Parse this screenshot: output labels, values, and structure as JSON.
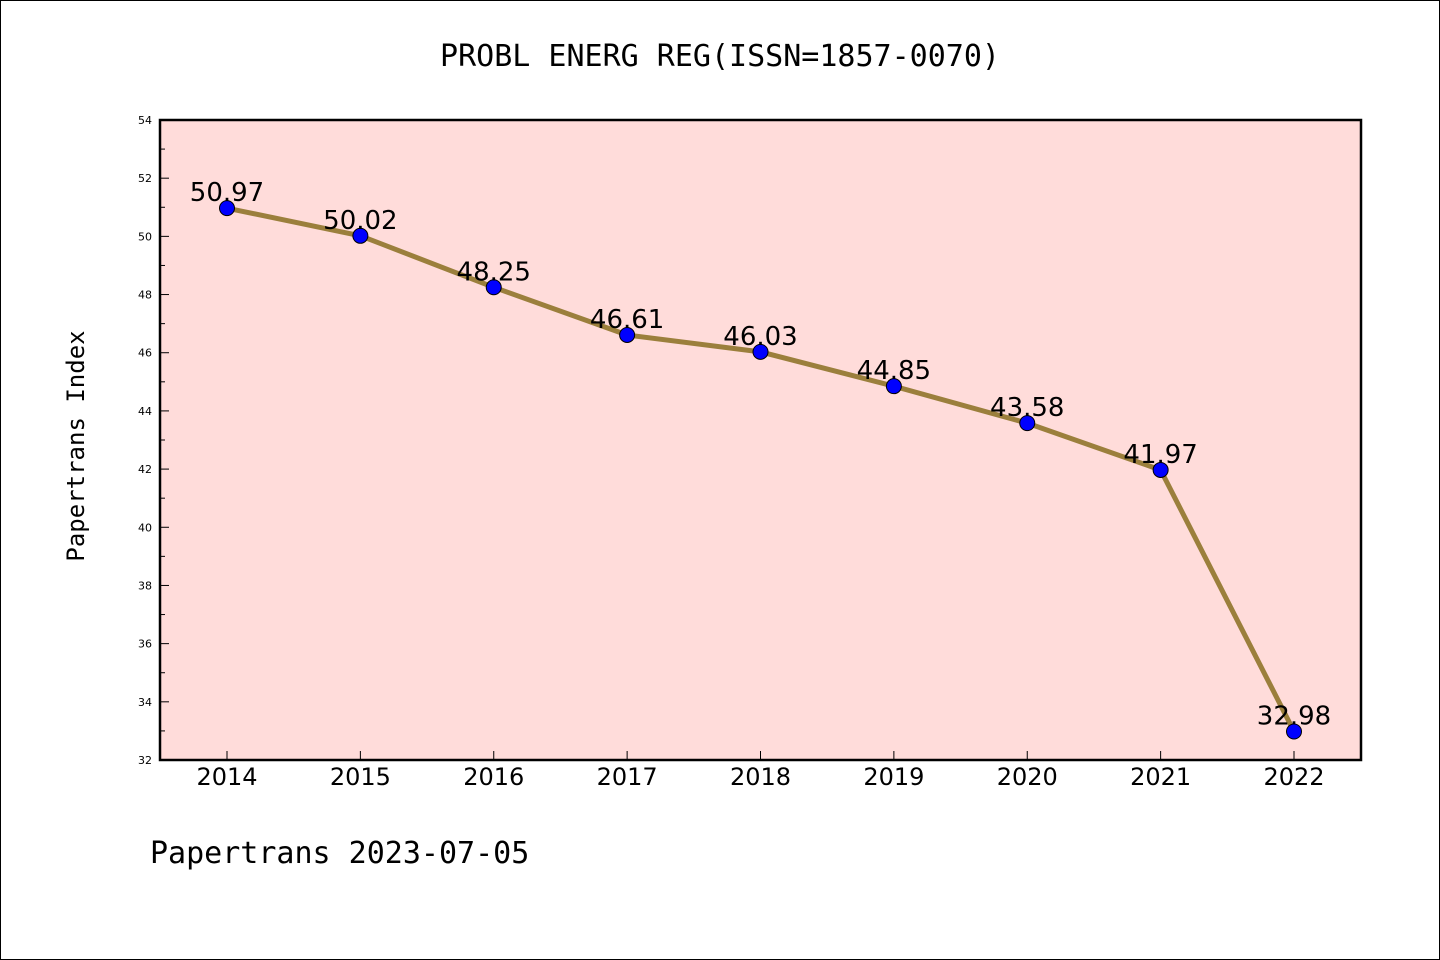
{
  "chart_data": {
    "type": "line",
    "title": "PROBL ENERG REG(ISSN=1857-0070)",
    "xlabel": "",
    "ylabel": "Papertrans Index",
    "footer": "Papertrans 2023-07-05",
    "categories": [
      "2014",
      "2015",
      "2016",
      "2017",
      "2018",
      "2019",
      "2020",
      "2021",
      "2022"
    ],
    "series": [
      {
        "values": [
          50.97,
          50.02,
          48.25,
          46.61,
          46.03,
          44.85,
          43.58,
          41.97,
          32.98
        ],
        "labels": [
          "50.97",
          "50.02",
          "48.25",
          "46.61",
          "46.03",
          "44.85",
          "43.58",
          "41.97",
          "32.98"
        ]
      }
    ],
    "ylim": [
      32,
      54
    ],
    "yticks": [
      "32",
      "34",
      "36",
      "38",
      "40",
      "42",
      "44",
      "46",
      "48",
      "50",
      "52",
      "54"
    ],
    "grid": false,
    "colors": {
      "plot_background": "#FFDCDA",
      "line": "#9B7F3C",
      "marker": "#0000FF"
    }
  }
}
